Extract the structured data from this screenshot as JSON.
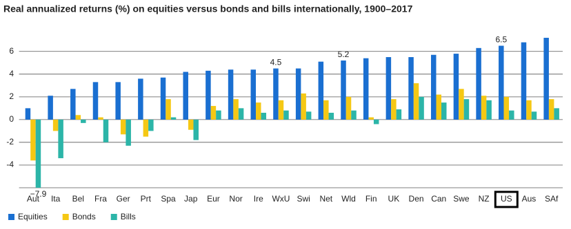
{
  "chart_data": {
    "type": "bar",
    "title": "Real annualized returns (%) on equities versus bonds and bills internationally, 1900–2017",
    "categories": [
      "Aut",
      "Ita",
      "Bel",
      "Fra",
      "Ger",
      "Prt",
      "Spa",
      "Jap",
      "Eur",
      "Nor",
      "Ire",
      "WxU",
      "Swi",
      "Net",
      "Wld",
      "Fin",
      "UK",
      "Den",
      "Can",
      "Swe",
      "NZ",
      "US",
      "Aus",
      "SAf"
    ],
    "highlight_category": "US",
    "series": [
      {
        "name": "Equities",
        "color": "#1a6fd1",
        "values": [
          1.0,
          2.1,
          2.7,
          3.3,
          3.3,
          3.6,
          3.7,
          4.2,
          4.3,
          4.4,
          4.4,
          4.5,
          4.5,
          5.1,
          5.2,
          5.4,
          5.5,
          5.5,
          5.7,
          5.8,
          6.3,
          6.5,
          6.8,
          7.2
        ],
        "value_labels": [
          null,
          null,
          null,
          null,
          null,
          null,
          null,
          null,
          null,
          null,
          null,
          "4.5",
          null,
          null,
          "5.2",
          null,
          null,
          null,
          null,
          null,
          null,
          "6.5",
          null,
          null
        ]
      },
      {
        "name": "Bonds",
        "color": "#f5c814",
        "values": [
          -3.6,
          -1.0,
          0.4,
          0.2,
          -1.3,
          -1.5,
          1.8,
          -0.9,
          1.2,
          1.8,
          1.5,
          1.7,
          2.3,
          1.7,
          2.0,
          0.2,
          1.8,
          3.2,
          2.2,
          2.7,
          2.1,
          2.0,
          1.7,
          1.8
        ]
      },
      {
        "name": "Bills",
        "color": "#2cb5a8",
        "values": [
          -7.9,
          -3.4,
          -0.3,
          -2.0,
          -2.3,
          -1.0,
          0.2,
          -1.8,
          0.8,
          1.0,
          0.6,
          0.8,
          0.7,
          0.6,
          0.8,
          -0.4,
          0.9,
          2.0,
          1.5,
          1.8,
          1.7,
          0.8,
          0.7,
          1.0
        ],
        "value_labels": [
          "−7.9",
          null,
          null,
          null,
          null,
          null,
          null,
          null,
          null,
          null,
          null,
          null,
          null,
          null,
          null,
          null,
          null,
          null,
          null,
          null,
          null,
          null,
          null,
          null
        ]
      }
    ],
    "ylim": [
      -6,
      7.5
    ],
    "yticks": [
      -4,
      -2,
      0,
      2,
      4,
      6
    ],
    "grid": true,
    "legend": "bottom-left"
  }
}
